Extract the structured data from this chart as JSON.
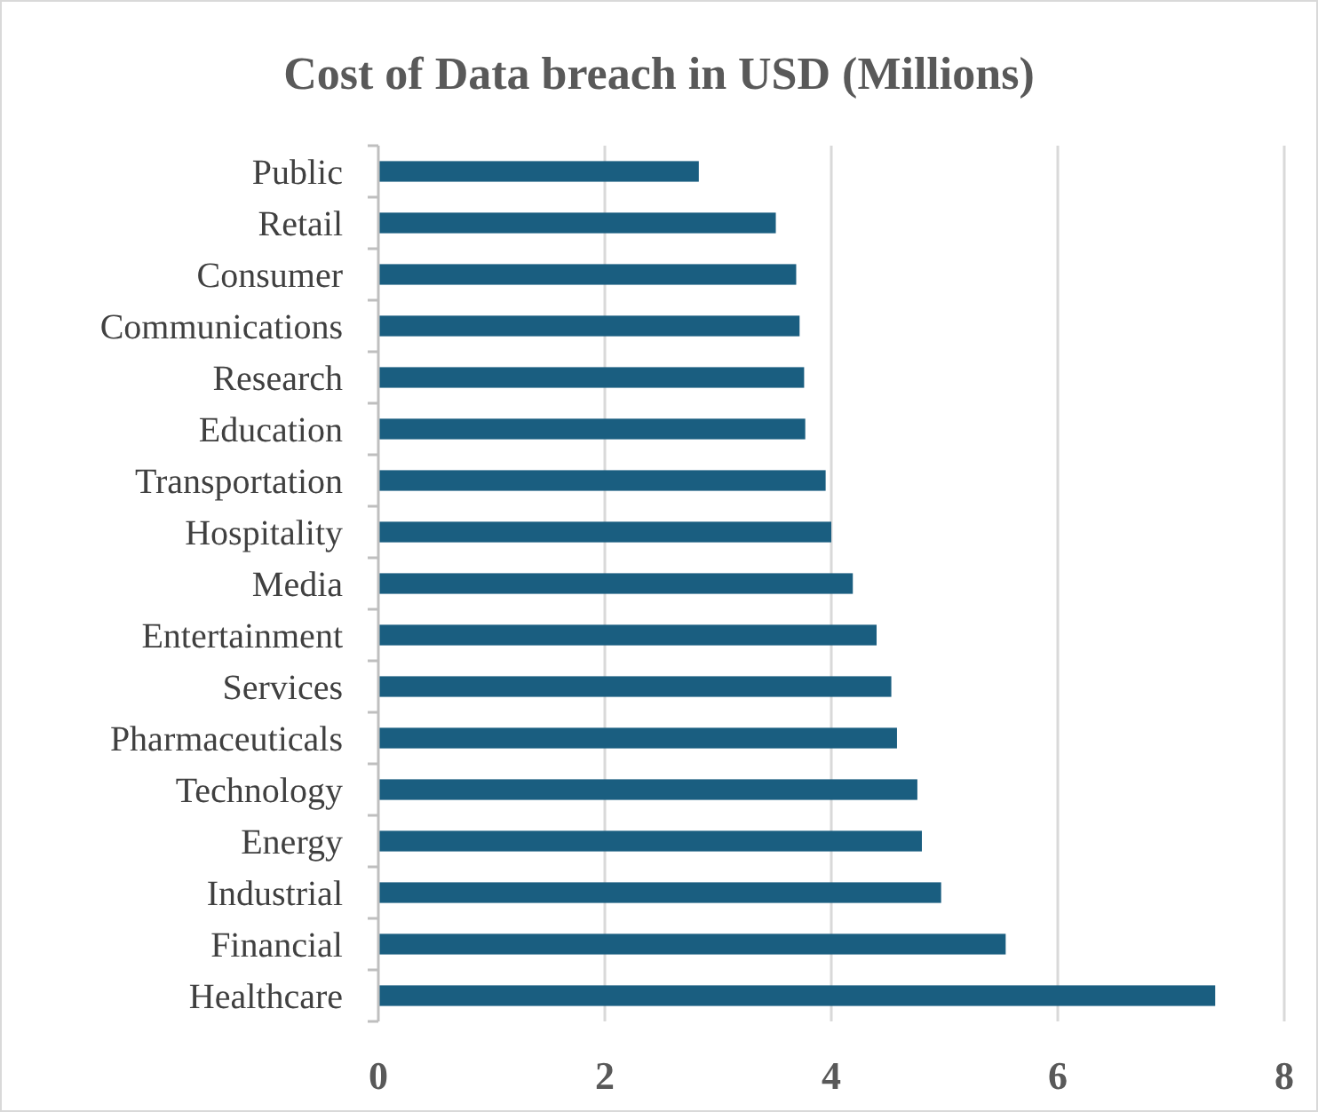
{
  "chart_data": {
    "type": "bar",
    "orientation": "horizontal",
    "title": "Cost of Data breach in USD (Millions)",
    "categories": [
      "Public",
      "Retail",
      "Consumer",
      "Communications",
      "Research",
      "Education",
      "Transportation",
      "Hospitality",
      "Media",
      "Entertainment",
      "Services",
      "Pharmaceuticals",
      "Technology",
      "Energy",
      "Industrial",
      "Financial",
      "Healthcare"
    ],
    "values": [
      2.83,
      3.51,
      3.69,
      3.72,
      3.76,
      3.77,
      3.95,
      4.0,
      4.19,
      4.4,
      4.53,
      4.58,
      4.76,
      4.8,
      4.97,
      5.54,
      7.39
    ],
    "color": "#1a5e80",
    "xlim": [
      0,
      8
    ],
    "xticks": [
      0,
      2,
      4,
      6,
      8
    ],
    "grid": "x"
  }
}
